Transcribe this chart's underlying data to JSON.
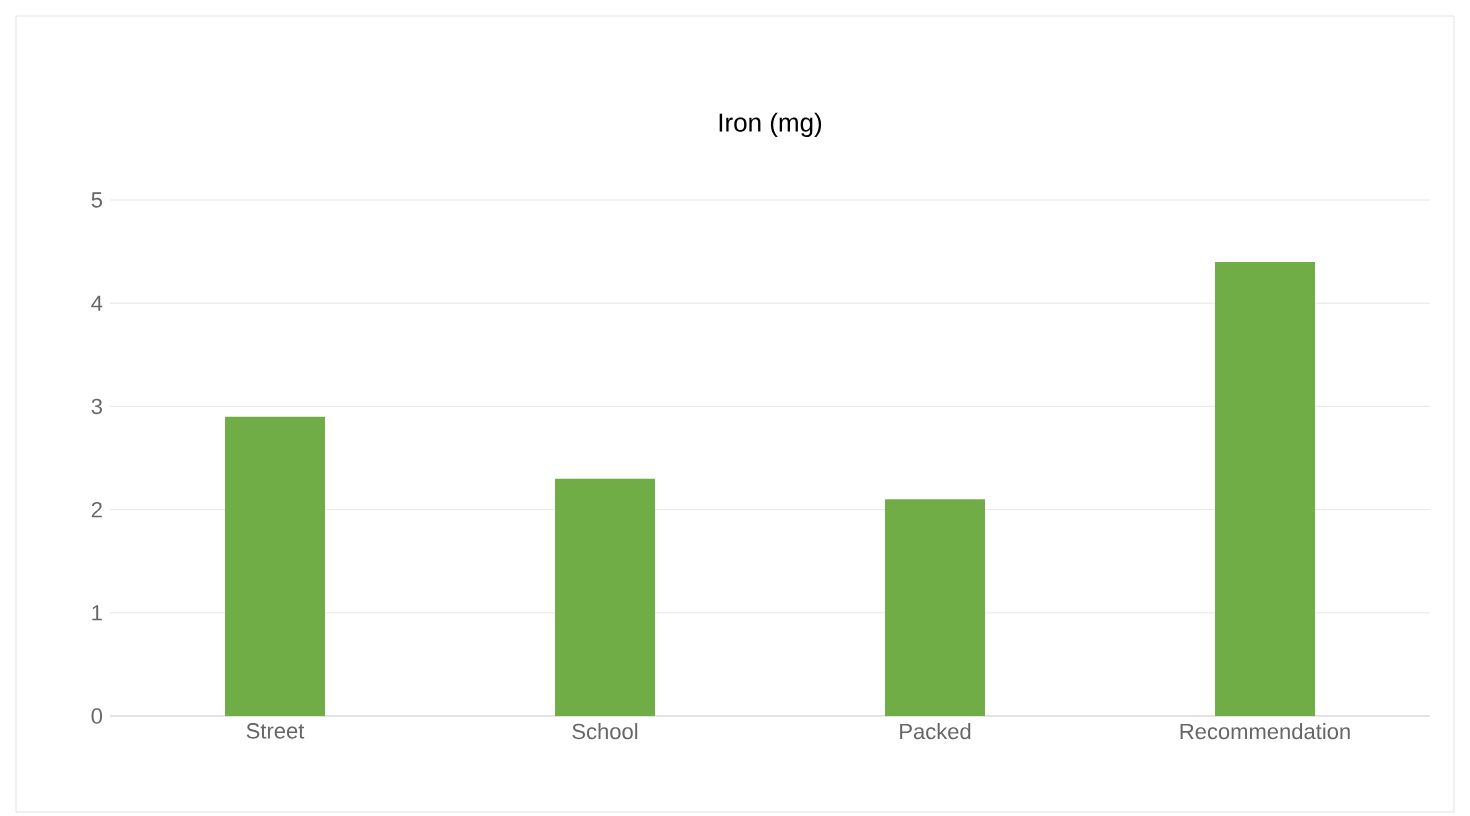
{
  "chart_data": {
    "type": "bar",
    "title": "Iron (mg)",
    "categories": [
      "Street",
      "School",
      "Packed",
      "Recommendation"
    ],
    "values": [
      2.9,
      2.3,
      2.1,
      4.4
    ],
    "color": "#70ad47",
    "ylim": [
      0,
      5
    ],
    "yticks": [
      0,
      1,
      2,
      3,
      4,
      5
    ],
    "grid": "y"
  }
}
